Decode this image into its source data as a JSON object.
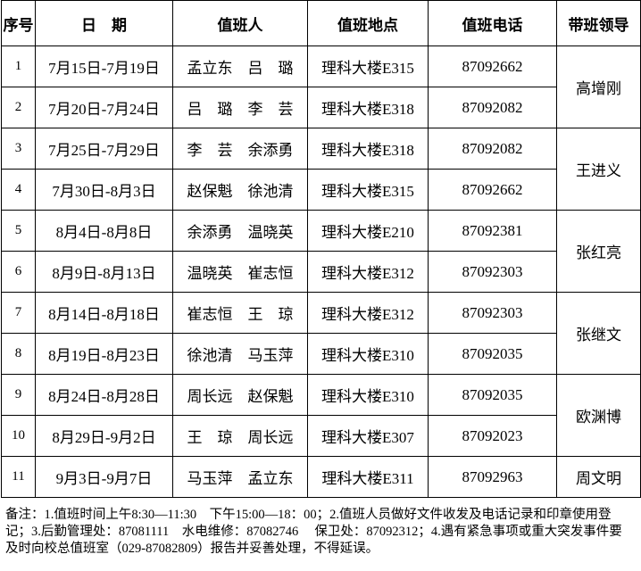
{
  "table": {
    "headers": [
      "序号",
      "日　期",
      "值班人",
      "值班地点",
      "值班电话",
      "带班领导"
    ],
    "groups": [
      {
        "leader": "高增刚",
        "rows": [
          [
            "1",
            "7月15日-7月19日",
            "孟立东　吕　璐",
            "理科大楼E315",
            "87092662"
          ],
          [
            "2",
            "7月20日-7月24日",
            "吕　璐　李　芸",
            "理科大楼E318",
            "87092082"
          ]
        ]
      },
      {
        "leader": "王进义",
        "rows": [
          [
            "3",
            "7月25日-7月29日",
            "李　芸　余添勇",
            "理科大楼E318",
            "87092082"
          ],
          [
            "4",
            "7月30日-8月3日",
            "赵保魁　徐池清",
            "理科大楼E315",
            "87092662"
          ]
        ]
      },
      {
        "leader": "张红亮",
        "rows": [
          [
            "5",
            "8月4日-8月8日",
            "余添勇　温晓英",
            "理科大楼E210",
            "87092381"
          ],
          [
            "6",
            "8月9日-8月13日",
            "温晓英　崔志恒",
            "理科大楼E312",
            "87092303"
          ]
        ]
      },
      {
        "leader": "张继文",
        "rows": [
          [
            "7",
            "8月14日-8月18日",
            "崔志恒　王　琼",
            "理科大楼E312",
            "87092303"
          ],
          [
            "8",
            "8月19日-8月23日",
            "徐池清　马玉萍",
            "理科大楼E310",
            "87092035"
          ]
        ]
      },
      {
        "leader": "欧渊博",
        "rows": [
          [
            "9",
            "8月24日-8月28日",
            "周长远　赵保魁",
            "理科大楼E310",
            "87092035"
          ],
          [
            "10",
            "8月29日-9月2日",
            "王　琼　周长远",
            "理科大楼E307",
            "87092023"
          ]
        ]
      },
      {
        "leader": "周文明",
        "rows": [
          [
            "11",
            "9月3日-9月7日",
            "马玉萍　孟立东",
            "理科大楼E311",
            "87092963"
          ]
        ]
      }
    ]
  },
  "note": "备注：1.值班时间上午8:30—11:30　下午15:00—18：00；2.值班人员做好文件收发及电话记录和印章使用登记；3.后勤管理处：87081111　水电维修：87082746　 保卫处：87092312；4.遇有紧急事项或重大突发事件要及时向校总值班室（029-87082809）报告并妥善处理，不得延误。"
}
